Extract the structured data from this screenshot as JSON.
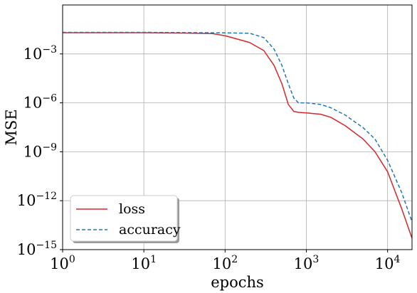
{
  "chart_data": {
    "type": "line",
    "xscale": "log",
    "yscale": "log",
    "xlabel": "epochs",
    "ylabel": "MSE",
    "xlim": [
      1,
      20000
    ],
    "ylim": [
      1e-15,
      1
    ],
    "grid": true,
    "legend": "lower-left",
    "x_ticks": [
      {
        "value": 1,
        "label": "10",
        "exp": "0"
      },
      {
        "value": 10,
        "label": "10",
        "exp": "1"
      },
      {
        "value": 100,
        "label": "10",
        "exp": "2"
      },
      {
        "value": 1000,
        "label": "10",
        "exp": "3"
      },
      {
        "value": 10000,
        "label": "10",
        "exp": "4"
      }
    ],
    "y_ticks": [
      {
        "value": 0.001,
        "label": "10",
        "exp": "−3"
      },
      {
        "value": 1e-06,
        "label": "10",
        "exp": "−6"
      },
      {
        "value": 1e-09,
        "label": "10",
        "exp": "−9"
      },
      {
        "value": 1e-12,
        "label": "10",
        "exp": "−12"
      },
      {
        "value": 1e-15,
        "label": "10",
        "exp": "−15"
      }
    ],
    "series": [
      {
        "name": "loss",
        "color": "#d62728",
        "dash": "solid",
        "points": [
          [
            1,
            0.02
          ],
          [
            10,
            0.02
          ],
          [
            30,
            0.019
          ],
          [
            70,
            0.0175
          ],
          [
            100,
            0.013
          ],
          [
            150,
            0.0075
          ],
          [
            200,
            0.005
          ],
          [
            300,
            0.0016
          ],
          [
            400,
            0.0002
          ],
          [
            500,
            1.5e-05
          ],
          [
            600,
            8e-07
          ],
          [
            700,
            3e-07
          ],
          [
            800,
            2.6e-07
          ],
          [
            1000,
            2.4e-07
          ],
          [
            1500,
            2e-07
          ],
          [
            2000,
            1.3e-07
          ],
          [
            3000,
            4e-08
          ],
          [
            5000,
            6e-09
          ],
          [
            7000,
            1e-09
          ],
          [
            10000,
            6e-11
          ],
          [
            15000,
            3e-13
          ],
          [
            20000,
            5e-15
          ]
        ]
      },
      {
        "name": "accuracy",
        "color": "#1f77b4",
        "dash": "dashed",
        "points": [
          [
            1,
            0.021
          ],
          [
            10,
            0.021
          ],
          [
            50,
            0.02
          ],
          [
            100,
            0.0195
          ],
          [
            200,
            0.0185
          ],
          [
            300,
            0.01
          ],
          [
            400,
            0.002
          ],
          [
            500,
            0.0002
          ],
          [
            600,
            1.5e-05
          ],
          [
            700,
            2e-06
          ],
          [
            800,
            1e-06
          ],
          [
            1000,
            1e-06
          ],
          [
            1500,
            8e-07
          ],
          [
            2000,
            5e-07
          ],
          [
            3000,
            1.8e-07
          ],
          [
            5000,
            3e-08
          ],
          [
            7000,
            6e-09
          ],
          [
            10000,
            3e-10
          ],
          [
            15000,
            3e-12
          ],
          [
            20000,
            5e-14
          ]
        ]
      }
    ]
  }
}
